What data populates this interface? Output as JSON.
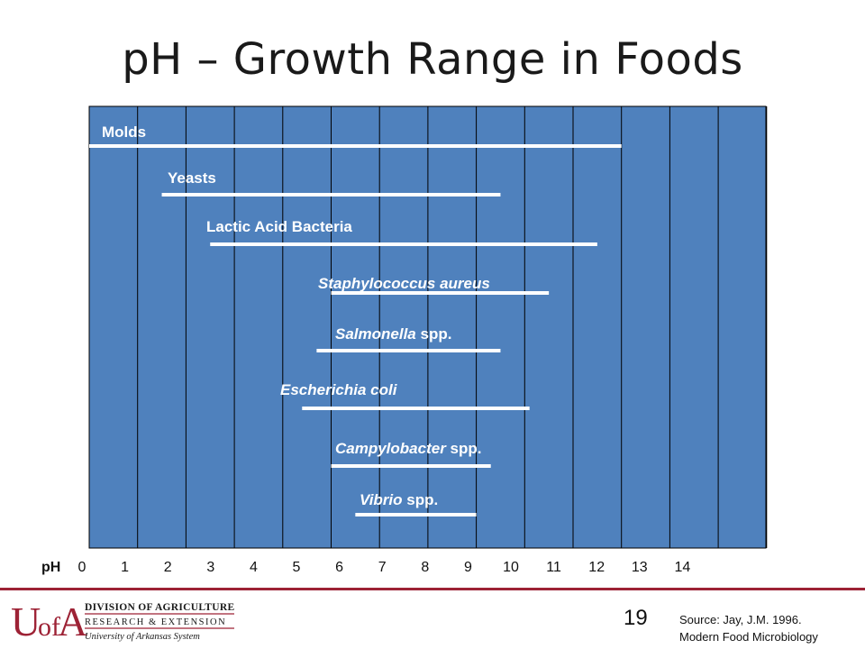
{
  "slide": {
    "title": "pH – Growth Range in Foods",
    "page_number": "19",
    "source_line1": "Source: Jay, J.M. 1996.",
    "source_line2": "Modern Food Microbiology"
  },
  "logo": {
    "line1": "DIVISION OF AGRICULTURE",
    "line2": "RESEARCH & EXTENSION",
    "line3": "University of Arkansas System",
    "color": "#9d2235"
  },
  "chart_data": {
    "type": "bar",
    "orientation": "horizontal-range",
    "axis_prefix": "pH",
    "x_ticks": [
      "0",
      "1",
      "2",
      "3",
      "4",
      "5",
      "6",
      "7",
      "8",
      "9",
      "10",
      "11",
      "12",
      "13",
      "14"
    ],
    "xlim": [
      0,
      14
    ],
    "grid": true,
    "background_color": "#4f81bd",
    "bar_color": "#ffffff",
    "series": [
      {
        "label_parts": [
          {
            "text": "Molds",
            "italic": false
          }
        ],
        "range": [
          0.0,
          11.0
        ]
      },
      {
        "label_parts": [
          {
            "text": "Yeasts",
            "italic": false
          }
        ],
        "range": [
          1.5,
          8.5
        ]
      },
      {
        "label_parts": [
          {
            "text": "Lactic Acid Bacteria",
            "italic": false
          }
        ],
        "range": [
          2.5,
          10.5
        ]
      },
      {
        "label_parts": [
          {
            "text": "Staphylococcus aureus",
            "italic": true
          }
        ],
        "range": [
          5.0,
          9.5
        ]
      },
      {
        "label_parts": [
          {
            "text": "Salmonella",
            "italic": true
          },
          {
            "text": " spp.",
            "italic": false
          }
        ],
        "range": [
          4.7,
          8.5
        ]
      },
      {
        "label_parts": [
          {
            "text": "Escherichia coli",
            "italic": true
          }
        ],
        "range": [
          4.4,
          9.1
        ]
      },
      {
        "label_parts": [
          {
            "text": "Campylobacter",
            "italic": true
          },
          {
            "text": " spp.",
            "italic": false
          }
        ],
        "range": [
          5.0,
          8.3
        ]
      },
      {
        "label_parts": [
          {
            "text": "Vibrio",
            "italic": true
          },
          {
            "text": " spp.",
            "italic": false
          }
        ],
        "range": [
          5.5,
          8.0
        ]
      }
    ]
  }
}
